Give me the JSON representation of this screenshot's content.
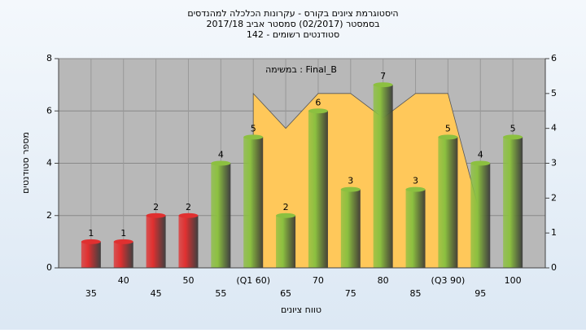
{
  "chart_data": {
    "type": "bar",
    "title": [
      "היסטוגרמת ציונים בקורס - עקרונות הכלכלה למהנדסים",
      "בסמסטר  (02/2017)  סמסטר אביב 2017/18",
      "סטודנטים רשומים - 142"
    ],
    "annotation": "במשימה : Final_B",
    "x_label": "טווח ציונים",
    "y_label": "מספר סטודנטים",
    "categories": [
      "35",
      "40",
      "45",
      "50",
      "55",
      "(Q1 60)",
      "65",
      "70",
      "75",
      "80",
      "85",
      "(Q3 90)",
      "95",
      "100"
    ],
    "series": [
      {
        "type": "bar",
        "values": [
          1,
          1,
          2,
          2,
          4,
          5,
          2,
          6,
          3,
          7,
          3,
          5,
          4,
          5
        ],
        "colors": [
          "#e03030",
          "#e03030",
          "#e03030",
          "#e03030",
          "#8cc040",
          "#8cc040",
          "#8cc040",
          "#8cc040",
          "#8cc040",
          "#8cc040",
          "#8cc040",
          "#8cc040",
          "#8cc040",
          "#8cc040"
        ]
      },
      {
        "type": "area",
        "axis": "y2",
        "color": "#ffc85a",
        "values": [
          null,
          null,
          null,
          null,
          null,
          5,
          4,
          5,
          5,
          4.3,
          5,
          5,
          1.5,
          null
        ]
      }
    ],
    "ylim": [
      0,
      8
    ],
    "yticks": [
      0,
      2,
      4,
      6,
      8
    ],
    "y2lim": [
      0,
      6
    ],
    "y2ticks": [
      0,
      1,
      2,
      3,
      4,
      5,
      6
    ],
    "grid": true
  }
}
